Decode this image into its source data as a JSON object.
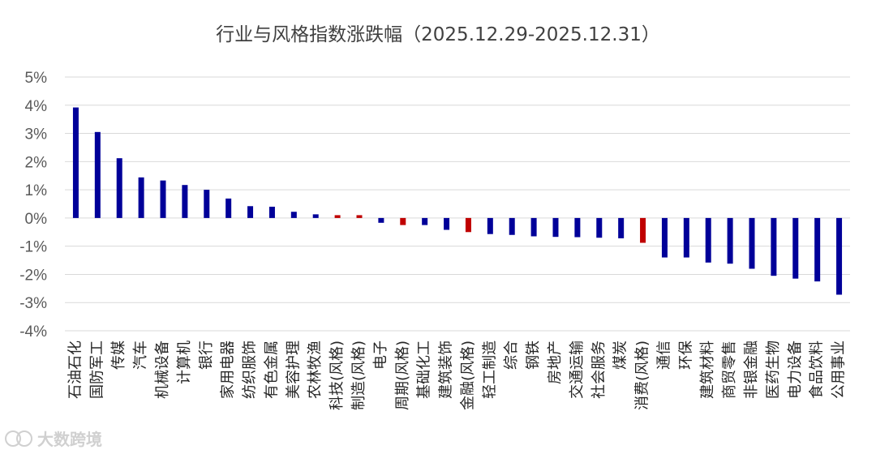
{
  "chart_data": {
    "type": "bar",
    "title": "行业与风格指数涨跌幅（2025.12.29-2025.12.31）",
    "xlabel": "",
    "ylabel": "",
    "ylim": [
      -4,
      5
    ],
    "yticks": [
      5,
      4,
      3,
      2,
      1,
      0,
      -1,
      -2,
      -3,
      -4
    ],
    "ytick_labels": [
      "5%",
      "4%",
      "3%",
      "2%",
      "1%",
      "0%",
      "-1%",
      "-2%",
      "-3%",
      "-4%"
    ],
    "grid": true,
    "legend": "none",
    "categories": [
      "石油石化",
      "国防军工",
      "传媒",
      "汽车",
      "机械设备",
      "计算机",
      "银行",
      "家用电器",
      "纺织服饰",
      "有色金属",
      "美容护理",
      "农林牧渔",
      "科技(风格)",
      "制造(风格)",
      "电子",
      "周期(风格)",
      "基础化工",
      "建筑装饰",
      "金融(风格)",
      "轻工制造",
      "综合",
      "钢铁",
      "房地产",
      "交通运输",
      "社会服务",
      "煤炭",
      "消费(风格)",
      "通信",
      "环保",
      "建筑材料",
      "商贸零售",
      "非银金融",
      "医药生物",
      "电力设备",
      "食品饮料",
      "公用事业"
    ],
    "values": [
      3.92,
      3.05,
      2.12,
      1.44,
      1.33,
      1.17,
      1.0,
      0.69,
      0.42,
      0.4,
      0.22,
      0.13,
      0.1,
      0.1,
      -0.17,
      -0.25,
      -0.25,
      -0.42,
      -0.5,
      -0.57,
      -0.6,
      -0.65,
      -0.67,
      -0.68,
      -0.7,
      -0.72,
      -0.88,
      -1.4,
      -1.4,
      -1.58,
      -1.62,
      -1.8,
      -2.05,
      -2.15,
      -2.25,
      -2.72
    ],
    "bar_colors": [
      "#000099",
      "#000099",
      "#000099",
      "#000099",
      "#000099",
      "#000099",
      "#000099",
      "#000099",
      "#000099",
      "#000099",
      "#000099",
      "#000099",
      "#c00000",
      "#c00000",
      "#000099",
      "#c00000",
      "#000099",
      "#000099",
      "#c00000",
      "#000099",
      "#000099",
      "#000099",
      "#000099",
      "#000099",
      "#000099",
      "#000099",
      "#c00000",
      "#000099",
      "#000099",
      "#000099",
      "#000099",
      "#000099",
      "#000099",
      "#000099",
      "#000099",
      "#000099"
    ]
  },
  "colors": {
    "industry": "#000099",
    "style": "#c00000",
    "grid": "#d9d9d9"
  },
  "watermark": {
    "icon": "logo-icon",
    "text": "大数跨境"
  }
}
